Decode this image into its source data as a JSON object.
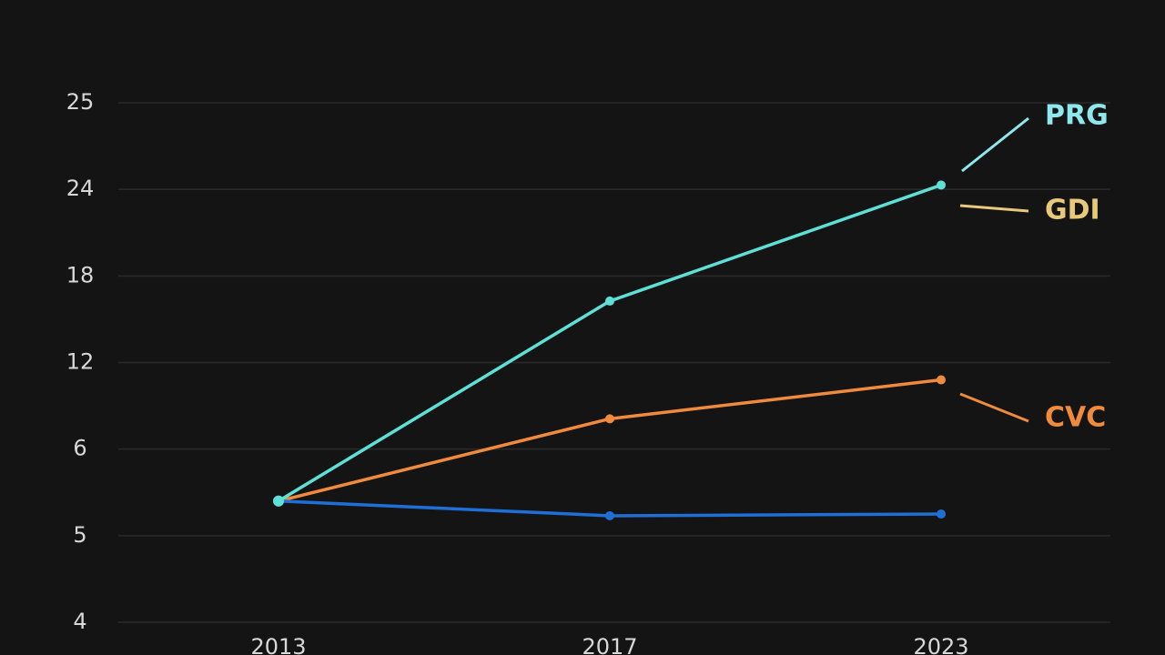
{
  "chart_data": {
    "type": "line",
    "categories": [
      "2013",
      "2017",
      "2023"
    ],
    "ylim": [
      0,
      6
    ],
    "yticks": [
      {
        "value": 0,
        "label": "4"
      },
      {
        "value": 1,
        "label": "5"
      },
      {
        "value": 2,
        "label": "6"
      },
      {
        "value": 3,
        "label": "12"
      },
      {
        "value": 4,
        "label": "18"
      },
      {
        "value": 5,
        "label": "24"
      },
      {
        "value": 6,
        "label": "25"
      }
    ],
    "grid": true,
    "series": [
      {
        "name": "PRG",
        "color": "#5ee0d6",
        "label_color": "#8fe8ee",
        "values": [
          1.4,
          3.71,
          5.05
        ]
      },
      {
        "name": "GDI",
        "color": "#1f6fd6",
        "label_color": "#e8c97a",
        "values": [
          1.4,
          1.23,
          1.25
        ]
      },
      {
        "name": "CVC",
        "color": "#f08a3c",
        "label_color": "#f08a3c",
        "values": [
          1.4,
          2.35,
          2.8
        ]
      }
    ]
  }
}
